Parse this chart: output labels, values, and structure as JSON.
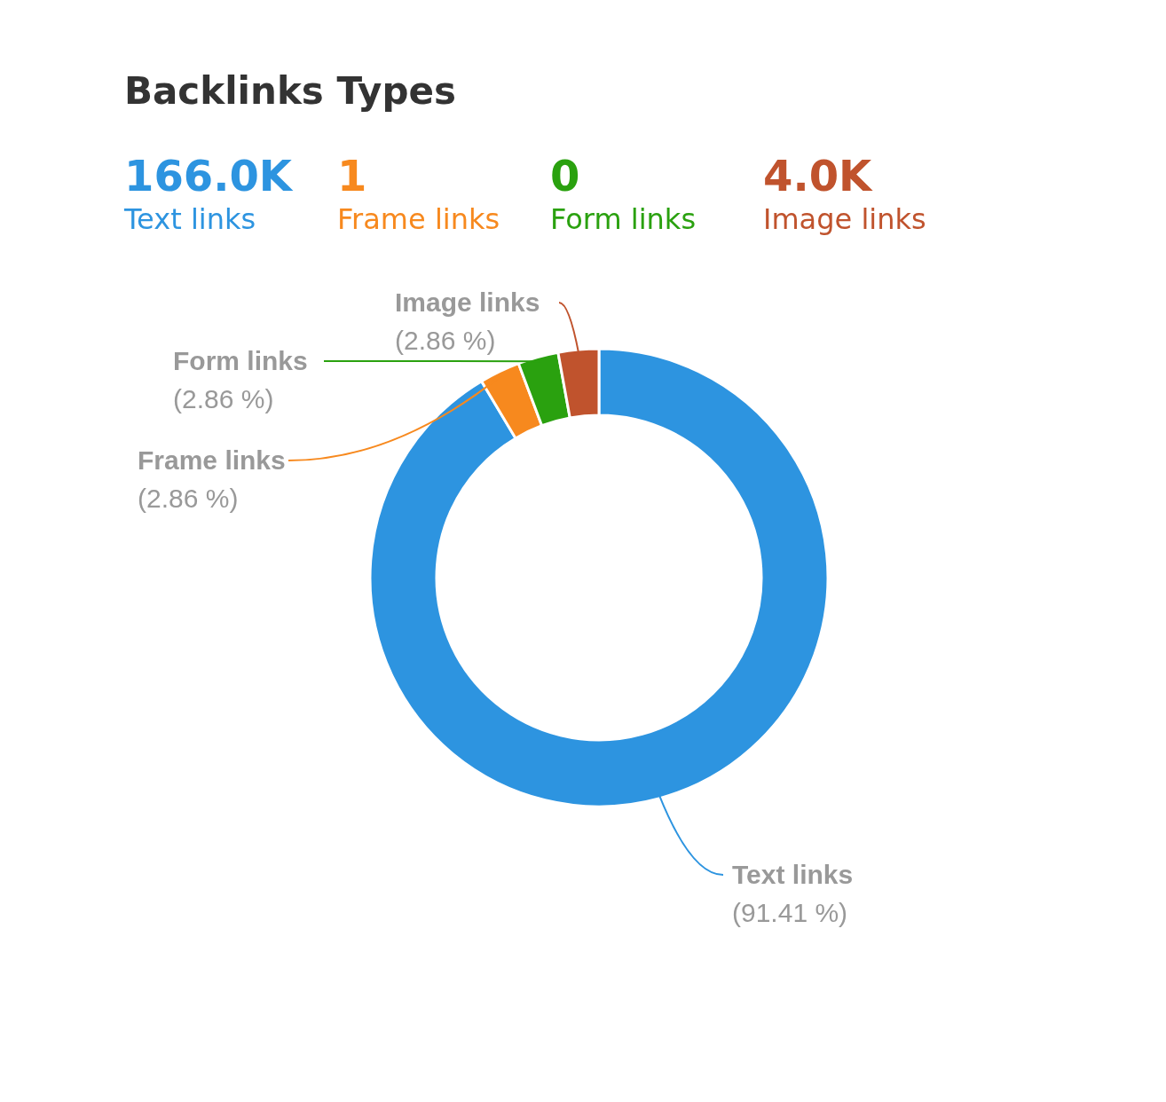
{
  "chart_data": {
    "type": "donut",
    "title": "Backlinks Types",
    "categories": [
      "Text links",
      "Frame links",
      "Form links",
      "Image links"
    ],
    "values": [
      91.41,
      2.86,
      2.86,
      2.86
    ],
    "colors": [
      "#2d94e0",
      "#f7891e",
      "#2aa10f",
      "#c0532d"
    ],
    "value_labels": [
      "(91.41 %)",
      "(2.86 %)",
      "(2.86 %)",
      "(2.86 %)"
    ],
    "annotations": [
      "166.0K",
      "1",
      "0",
      "4.0K"
    ]
  }
}
